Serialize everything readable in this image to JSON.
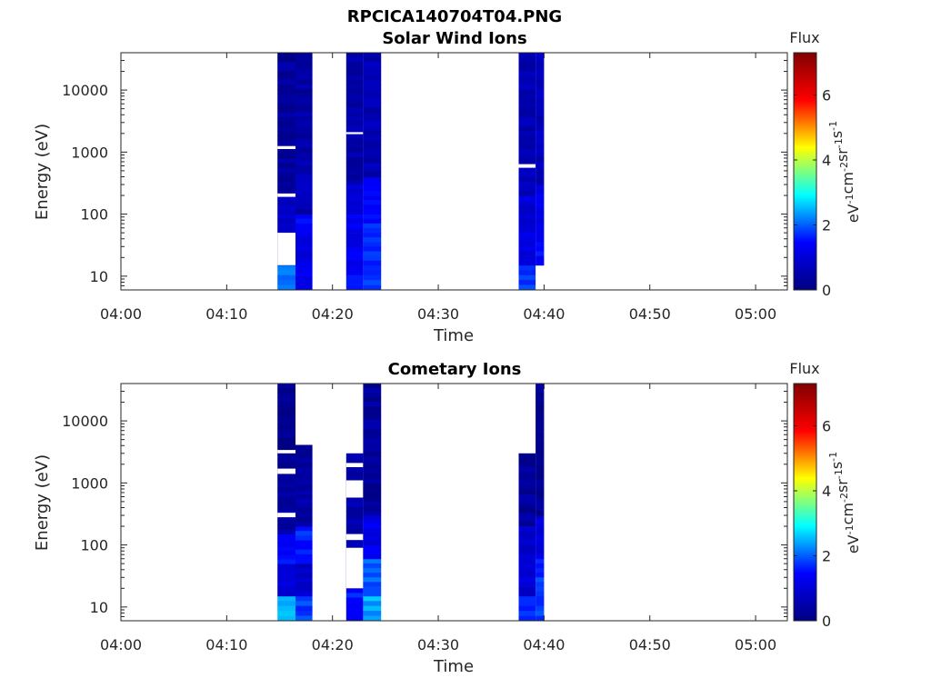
{
  "figure": {
    "title": "RPCICA140704T04.PNG"
  },
  "colormap": {
    "name": "jet",
    "stops": [
      "#000080",
      "#0000ff",
      "#00ffff",
      "#ffff00",
      "#ff0000",
      "#800000"
    ]
  },
  "chart_data": [
    {
      "type": "heatmap",
      "title": "Solar Wind Ions",
      "xlabel": "Time",
      "ylabel": "Energy (eV)",
      "x_tick_labels": [
        "04:00",
        "04:10",
        "04:20",
        "04:30",
        "04:40",
        "04:50",
        "05:00"
      ],
      "y_tick_labels": [
        "10",
        "100",
        "1000",
        "10000"
      ],
      "y_scale": "log",
      "ylim": [
        6,
        40000
      ],
      "xlim_minutes": [
        0,
        63
      ],
      "colorbar": {
        "label": "Flux",
        "unit_label": "eV-1cm-2sr-1s-1",
        "ticks": [
          "0",
          "2",
          "4",
          "6"
        ],
        "range": [
          0,
          7.3
        ]
      },
      "columns": [
        {
          "t_start": 14.8,
          "t_end": 16.5,
          "energy_min": 6,
          "energy_max": 40000,
          "gaps": [
            [
              "1120",
              "1250"
            ],
            [
              "190",
              "215"
            ],
            [
              "15",
              "50"
            ]
          ],
          "bands": [
            [
              6,
              15,
              2.2
            ],
            [
              15,
              50,
              0
            ],
            [
              50,
              100,
              0.9
            ],
            [
              100,
              200,
              0.8
            ],
            [
              200,
              40000,
              0.3
            ]
          ]
        },
        {
          "t_start": 16.5,
          "t_end": 18.1,
          "energy_min": 6,
          "energy_max": 40000,
          "gaps": [],
          "bands": [
            [
              6,
              50,
              1.2
            ],
            [
              50,
              100,
              1.4
            ],
            [
              100,
              1000,
              0.6
            ],
            [
              1000,
              40000,
              0.4
            ]
          ]
        },
        {
          "t_start": 21.3,
          "t_end": 22.9,
          "energy_min": 6,
          "energy_max": 40000,
          "gaps": [
            [
              "1950",
              "2100"
            ]
          ],
          "bands": [
            [
              6,
              15,
              1.5
            ],
            [
              15,
              100,
              1.3
            ],
            [
              100,
              300,
              1.1
            ],
            [
              300,
              40000,
              0.5
            ]
          ]
        },
        {
          "t_start": 22.9,
          "t_end": 24.6,
          "energy_min": 6,
          "energy_max": 40000,
          "gaps": [],
          "bands": [
            [
              6,
              15,
              1.7
            ],
            [
              15,
              100,
              1.6
            ],
            [
              100,
              400,
              1.3
            ],
            [
              400,
              40000,
              0.6
            ]
          ]
        },
        {
          "t_start": 37.6,
          "t_end": 39.2,
          "energy_min": 6,
          "energy_max": 40000,
          "gaps": [
            [
              "560",
              "640"
            ]
          ],
          "bands": [
            [
              6,
              15,
              1.8
            ],
            [
              15,
              60,
              1.1
            ],
            [
              60,
              200,
              1.0
            ],
            [
              200,
              40000,
              0.6
            ]
          ]
        },
        {
          "t_start": 39.2,
          "t_end": 40.0,
          "energy_min": 15,
          "energy_max": 40000,
          "gaps": [],
          "bands": [
            [
              15,
              60,
              1.4
            ],
            [
              60,
              300,
              1.2
            ],
            [
              300,
              40000,
              0.7
            ]
          ]
        }
      ]
    },
    {
      "type": "heatmap",
      "title": "Cometary Ions",
      "xlabel": "Time",
      "ylabel": "Energy (eV)",
      "x_tick_labels": [
        "04:00",
        "04:10",
        "04:20",
        "04:30",
        "04:40",
        "04:50",
        "05:00"
      ],
      "y_tick_labels": [
        "10",
        "100",
        "1000",
        "10000"
      ],
      "y_scale": "log",
      "ylim": [
        6,
        40000
      ],
      "xlim_minutes": [
        0,
        63
      ],
      "colorbar": {
        "label": "Flux",
        "unit_label": "eV-1cm-2sr-1s-1",
        "ticks": [
          "0",
          "2",
          "4",
          "6"
        ],
        "range": [
          0,
          7.3
        ]
      },
      "columns": [
        {
          "t_start": 14.8,
          "t_end": 16.5,
          "energy_min": 6,
          "energy_max": 40000,
          "gaps": [
            [
              "3000",
              "3400"
            ],
            [
              "1400",
              "1700"
            ],
            [
              "280",
              "330"
            ]
          ],
          "bands": [
            [
              6,
              15,
              2.4
            ],
            [
              15,
              50,
              1.0
            ],
            [
              50,
              150,
              1.4
            ],
            [
              150,
              1000,
              0.4
            ],
            [
              1000,
              40000,
              0.2
            ]
          ]
        },
        {
          "t_start": 16.5,
          "t_end": 18.1,
          "energy_min": 6,
          "energy_max": 4100,
          "gaps": [],
          "bands": [
            [
              6,
              15,
              1.8
            ],
            [
              15,
              50,
              0.8
            ],
            [
              50,
              200,
              1.6
            ],
            [
              200,
              4100,
              0.4
            ]
          ]
        },
        {
          "t_start": 21.3,
          "t_end": 22.9,
          "energy_min": 6,
          "energy_max": 3000,
          "gaps": [
            [
              "1800",
              "2100"
            ],
            [
              "580",
              "1100"
            ],
            [
              "120",
              "150"
            ],
            [
              "20",
              "90"
            ]
          ],
          "bands": [
            [
              6,
              20,
              1.6
            ],
            [
              20,
              130,
              0.6
            ],
            [
              130,
              3000,
              0.5
            ]
          ]
        },
        {
          "t_start": 22.9,
          "t_end": 24.6,
          "energy_min": 6,
          "energy_max": 40000,
          "gaps": [],
          "bands": [
            [
              6,
              15,
              2.4
            ],
            [
              15,
              60,
              2.0
            ],
            [
              60,
              300,
              1.2
            ],
            [
              300,
              40000,
              0.3
            ]
          ]
        },
        {
          "t_start": 37.6,
          "t_end": 39.2,
          "energy_min": 6,
          "energy_max": 3000,
          "gaps": [],
          "bands": [
            [
              6,
              15,
              1.8
            ],
            [
              15,
              60,
              1.0
            ],
            [
              60,
              200,
              0.9
            ],
            [
              200,
              3000,
              0.3
            ]
          ]
        },
        {
          "t_start": 39.2,
          "t_end": 40.0,
          "energy_min": 6,
          "energy_max": 40000,
          "gaps": [],
          "bands": [
            [
              6,
              15,
              1.9
            ],
            [
              15,
              60,
              1.7
            ],
            [
              60,
              300,
              1.1
            ],
            [
              300,
              40000,
              0.2
            ]
          ]
        }
      ]
    }
  ]
}
